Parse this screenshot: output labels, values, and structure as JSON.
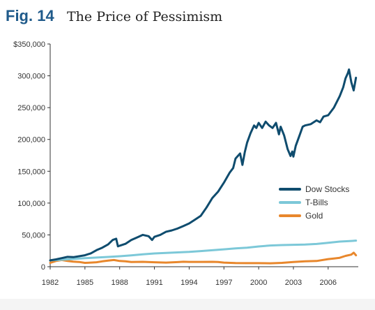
{
  "figure": {
    "label": "Fig. 14",
    "title": "The Price of Pessimism"
  },
  "chart_data": {
    "type": "line",
    "title": "The Price of Pessimism",
    "xlabel": "",
    "ylabel": "",
    "xlim": [
      1982,
      2008.6
    ],
    "ylim": [
      0,
      350000
    ],
    "x_ticks": [
      1982,
      1985,
      1988,
      1991,
      1994,
      1997,
      2000,
      2003,
      2006
    ],
    "y_ticks": [
      {
        "value": 0,
        "label": "0"
      },
      {
        "value": 50000,
        "label": "50,000"
      },
      {
        "value": 100000,
        "label": "100,000"
      },
      {
        "value": 150000,
        "label": "150,000"
      },
      {
        "value": 200000,
        "label": "200,000"
      },
      {
        "value": 250000,
        "label": "250,000"
      },
      {
        "value": 300000,
        "label": "300,000"
      },
      {
        "value": 350000,
        "label": "$350,000"
      }
    ],
    "grid": false,
    "legend_position": "right",
    "series": [
      {
        "name": "Dow Stocks",
        "color": "#0f4c6e",
        "x": [
          1982.0,
          1982.5,
          1983.0,
          1983.5,
          1984.0,
          1984.5,
          1985.0,
          1985.5,
          1986.0,
          1986.5,
          1987.0,
          1987.4,
          1987.7,
          1987.85,
          1988.0,
          1988.5,
          1989.0,
          1989.5,
          1990.0,
          1990.5,
          1990.8,
          1991.0,
          1991.5,
          1992.0,
          1992.5,
          1993.0,
          1993.5,
          1994.0,
          1994.5,
          1995.0,
          1995.5,
          1996.0,
          1996.5,
          1997.0,
          1997.5,
          1997.8,
          1998.0,
          1998.4,
          1998.6,
          1998.8,
          1999.0,
          1999.3,
          1999.6,
          1999.8,
          2000.0,
          2000.3,
          2000.6,
          2000.9,
          2001.2,
          2001.5,
          2001.75,
          2001.9,
          2002.2,
          2002.5,
          2002.75,
          2002.9,
          2003.0,
          2003.2,
          2003.5,
          2003.8,
          2004.0,
          2004.5,
          2005.0,
          2005.3,
          2005.6,
          2006.0,
          2006.5,
          2007.0,
          2007.3,
          2007.5,
          2007.7,
          2007.8,
          2008.0,
          2008.2,
          2008.4
        ],
        "values": [
          10000,
          11500,
          13500,
          15500,
          15000,
          16500,
          18000,
          21000,
          26000,
          30000,
          35000,
          42000,
          44000,
          32000,
          33000,
          36000,
          42000,
          46000,
          50000,
          48000,
          42000,
          47000,
          50000,
          55000,
          57000,
          60000,
          64000,
          68000,
          74000,
          80000,
          93000,
          108000,
          118000,
          132000,
          148000,
          155000,
          170000,
          178000,
          160000,
          180000,
          195000,
          210000,
          222000,
          218000,
          226000,
          218000,
          228000,
          222000,
          218000,
          226000,
          208000,
          220000,
          206000,
          185000,
          174000,
          181000,
          173000,
          190000,
          205000,
          220000,
          222000,
          224000,
          230000,
          227000,
          236000,
          238000,
          250000,
          268000,
          282000,
          296000,
          304000,
          310000,
          290000,
          277000,
          297000
        ]
      },
      {
        "name": "T-Bills",
        "color": "#7cc8d8",
        "x": [
          1982,
          1983,
          1984,
          1985,
          1986,
          1987,
          1988,
          1989,
          1990,
          1991,
          1992,
          1993,
          1994,
          1995,
          1996,
          1997,
          1998,
          1999,
          2000,
          2001,
          2002,
          2003,
          2004,
          2005,
          2006,
          2007,
          2008,
          2008.4
        ],
        "values": [
          10000,
          11000,
          12200,
          13400,
          14400,
          15400,
          16500,
          17900,
          19400,
          20800,
          21700,
          22500,
          23300,
          24600,
          25900,
          27300,
          28700,
          30000,
          31800,
          33300,
          34000,
          34400,
          34800,
          35800,
          37500,
          39500,
          40500,
          41000
        ]
      },
      {
        "name": "Gold",
        "color": "#e8872c",
        "x": [
          1982.0,
          1982.5,
          1983.0,
          1983.5,
          1984.0,
          1984.5,
          1985.0,
          1985.5,
          1986.0,
          1986.5,
          1987.0,
          1987.5,
          1988.0,
          1988.5,
          1989.0,
          1990.0,
          1991.0,
          1992.0,
          1993.0,
          1993.5,
          1994.0,
          1995.0,
          1996.0,
          1996.5,
          1997.0,
          1998.0,
          1999.0,
          2000.0,
          2001.0,
          2002.0,
          2003.0,
          2004.0,
          2005.0,
          2006.0,
          2006.5,
          2007.0,
          2007.5,
          2008.0,
          2008.2,
          2008.4
        ],
        "values": [
          6000,
          9000,
          10500,
          9000,
          8000,
          7500,
          6000,
          6500,
          7000,
          8500,
          9500,
          10500,
          9000,
          8500,
          7500,
          7700,
          7000,
          6500,
          7200,
          7800,
          7600,
          7600,
          7700,
          7300,
          6500,
          5800,
          5600,
          5600,
          5400,
          6000,
          7500,
          8500,
          9000,
          12000,
          13000,
          14000,
          17000,
          19000,
          22000,
          18000
        ]
      }
    ]
  }
}
